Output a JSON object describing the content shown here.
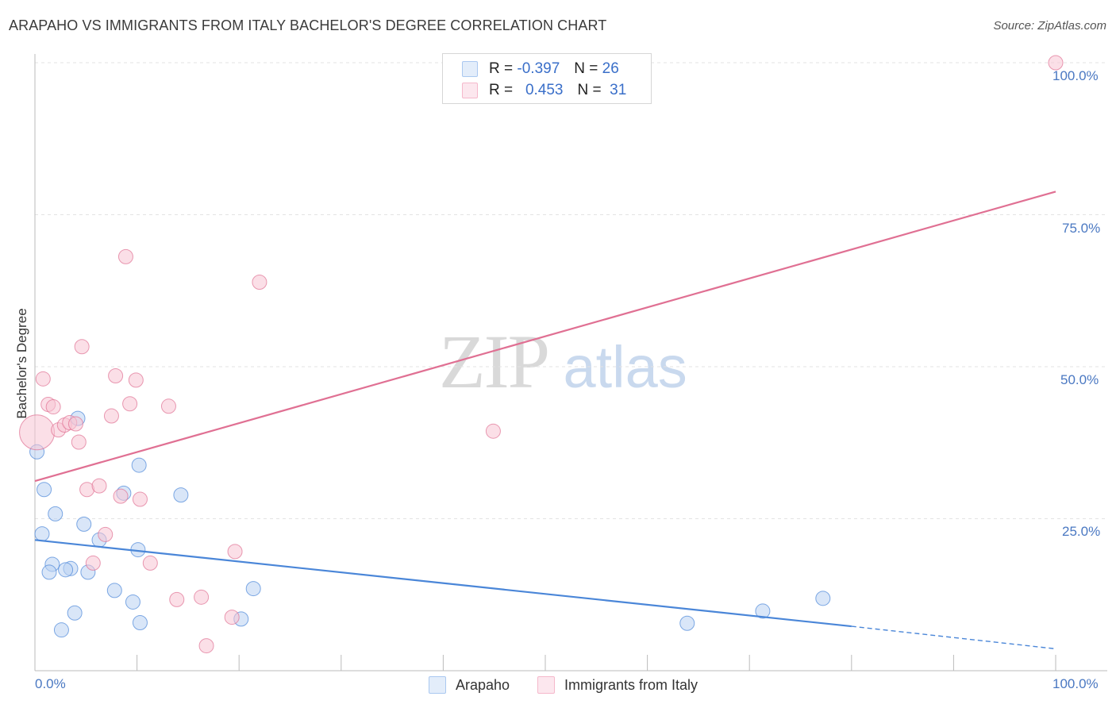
{
  "title": "ARAPAHO VS IMMIGRANTS FROM ITALY BACHELOR'S DEGREE CORRELATION CHART",
  "source": "Source: ZipAtlas.com",
  "watermark": {
    "zip": "ZIP",
    "atlas": "atlas"
  },
  "legend_top": [
    {
      "r_label": "R = ",
      "r_value": "-0.397",
      "n_label": "N = ",
      "n_value": "26",
      "color": "#aac8f0"
    },
    {
      "r_label": "R = ",
      "r_value": "0.453",
      "n_label": "N = ",
      "n_value": "31",
      "color": "#f5b8cb"
    }
  ],
  "legend_bottom": [
    {
      "label": "Arapaho",
      "color": "#aac8f0"
    },
    {
      "label": "Immigrants from Italy",
      "color": "#f5b8cb"
    }
  ],
  "chart_data": {
    "type": "scatter",
    "title": "ARAPAHO VS IMMIGRANTS FROM ITALY BACHELOR'S DEGREE CORRELATION CHART",
    "xlabel": "",
    "ylabel": "Bachelor's Degree",
    "xlim": [
      0,
      100
    ],
    "ylim": [
      0,
      100
    ],
    "x_tick_labels": [
      "0.0%",
      "100.0%"
    ],
    "y_tick_labels": [
      "100.0%",
      "75.0%",
      "50.0%",
      "25.0%"
    ],
    "y_ticks": [
      100,
      75,
      50,
      25
    ],
    "grid": true,
    "series": [
      {
        "name": "Arapaho",
        "color": "#4a86d8",
        "fill": "#b9d2f3",
        "trend": {
          "x0": 0,
          "y0": 21.5,
          "x1": 80,
          "y1": 7.3,
          "dashed_to_x": 100,
          "dashed_to_y": 3.6
        },
        "points": [
          [
            0.2,
            36.0
          ],
          [
            0.9,
            29.8
          ],
          [
            1.7,
            17.5
          ],
          [
            1.4,
            16.2
          ],
          [
            2.0,
            25.8
          ],
          [
            3.5,
            16.8
          ],
          [
            3.0,
            16.6
          ],
          [
            0.7,
            22.5
          ],
          [
            4.2,
            41.5
          ],
          [
            3.9,
            9.5
          ],
          [
            2.6,
            6.7
          ],
          [
            4.8,
            24.1
          ],
          [
            5.2,
            16.2
          ],
          [
            6.3,
            21.5
          ],
          [
            7.8,
            13.2
          ],
          [
            8.7,
            29.2
          ],
          [
            9.6,
            11.3
          ],
          [
            10.1,
            19.9
          ],
          [
            10.3,
            7.9
          ],
          [
            10.2,
            33.8
          ],
          [
            14.3,
            28.9
          ],
          [
            20.2,
            8.5
          ],
          [
            21.4,
            13.5
          ],
          [
            63.9,
            7.8
          ],
          [
            71.3,
            9.8
          ],
          [
            77.2,
            11.9
          ]
        ]
      },
      {
        "name": "Immigrants from Italy",
        "color": "#e07093",
        "fill": "#f8c4d4",
        "trend": {
          "x0": 0,
          "y0": 31.2,
          "x1": 100,
          "y1": 78.8
        },
        "points": [
          [
            0.2,
            39.2
          ],
          [
            0.8,
            48.0
          ],
          [
            1.3,
            43.8
          ],
          [
            1.8,
            43.4
          ],
          [
            2.3,
            39.6
          ],
          [
            2.9,
            40.4
          ],
          [
            3.4,
            40.8
          ],
          [
            4.0,
            40.6
          ],
          [
            4.3,
            37.6
          ],
          [
            4.6,
            53.3
          ],
          [
            5.1,
            29.8
          ],
          [
            5.7,
            17.7
          ],
          [
            6.3,
            30.4
          ],
          [
            6.9,
            22.4
          ],
          [
            7.5,
            41.9
          ],
          [
            7.9,
            48.5
          ],
          [
            8.4,
            28.7
          ],
          [
            8.9,
            68.1
          ],
          [
            9.3,
            43.9
          ],
          [
            9.9,
            47.8
          ],
          [
            10.3,
            28.2
          ],
          [
            11.3,
            17.7
          ],
          [
            13.1,
            43.5
          ],
          [
            13.9,
            11.7
          ],
          [
            16.3,
            12.1
          ],
          [
            16.8,
            4.1
          ],
          [
            19.3,
            8.8
          ],
          [
            19.6,
            19.6
          ],
          [
            22.0,
            63.9
          ],
          [
            44.9,
            39.4
          ],
          [
            100.0,
            100.0
          ]
        ]
      }
    ]
  }
}
